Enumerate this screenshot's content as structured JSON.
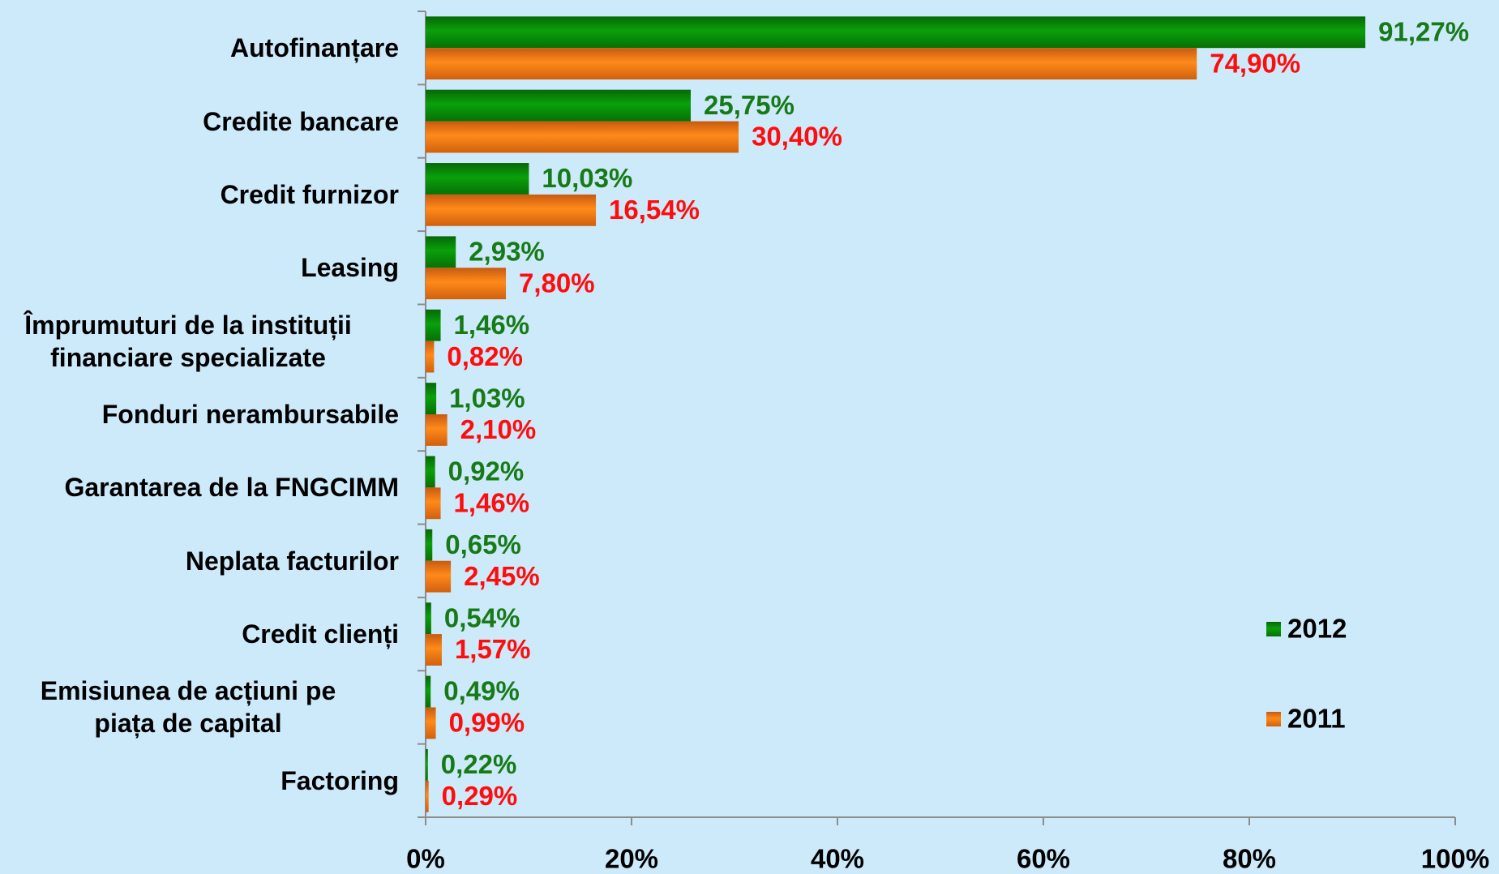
{
  "chart_data": {
    "type": "hbar",
    "categories": [
      "Autofinanțare",
      "Credite bancare",
      "Credit furnizor",
      "Leasing",
      "Împrumuturi de la instituții\nfinanciare specializate",
      "Fonduri nerambursabile",
      "Garantarea de la FNGCIMM",
      "Neplata facturilor",
      "Credit clienți",
      "Emisiunea de acțiuni pe\npiața de capital",
      "Factoring"
    ],
    "series": [
      {
        "name": "2012",
        "color": "#0a8f0a",
        "label_color": "#177a17",
        "values": [
          91.27,
          25.75,
          10.03,
          2.93,
          1.46,
          1.03,
          0.92,
          0.65,
          0.54,
          0.49,
          0.22
        ],
        "value_labels": [
          "91,27%",
          "25,75%",
          "10,03%",
          "2,93%",
          "1,46%",
          "1,03%",
          "0,92%",
          "0,65%",
          "0,54%",
          "0,49%",
          "0,22%"
        ]
      },
      {
        "name": "2011",
        "color": "#ff7b12",
        "label_color": "#ff0d0d",
        "values": [
          74.9,
          30.4,
          16.54,
          7.8,
          0.82,
          2.1,
          1.46,
          2.45,
          1.57,
          0.99,
          0.29
        ],
        "value_labels": [
          "74,90%",
          "30,40%",
          "16,54%",
          "7,80%",
          "0,82%",
          "2,10%",
          "1,46%",
          "2,45%",
          "1,57%",
          "0,99%",
          "0,29%"
        ]
      }
    ],
    "xlim": [
      0,
      100
    ],
    "xticks": [
      {
        "value": 0,
        "label": "0%"
      },
      {
        "value": 20,
        "label": "20%"
      },
      {
        "value": 40,
        "label": "40%"
      },
      {
        "value": 60,
        "label": "60%"
      },
      {
        "value": 80,
        "label": "80%"
      },
      {
        "value": 100,
        "label": "100%"
      }
    ],
    "legend": "right"
  }
}
